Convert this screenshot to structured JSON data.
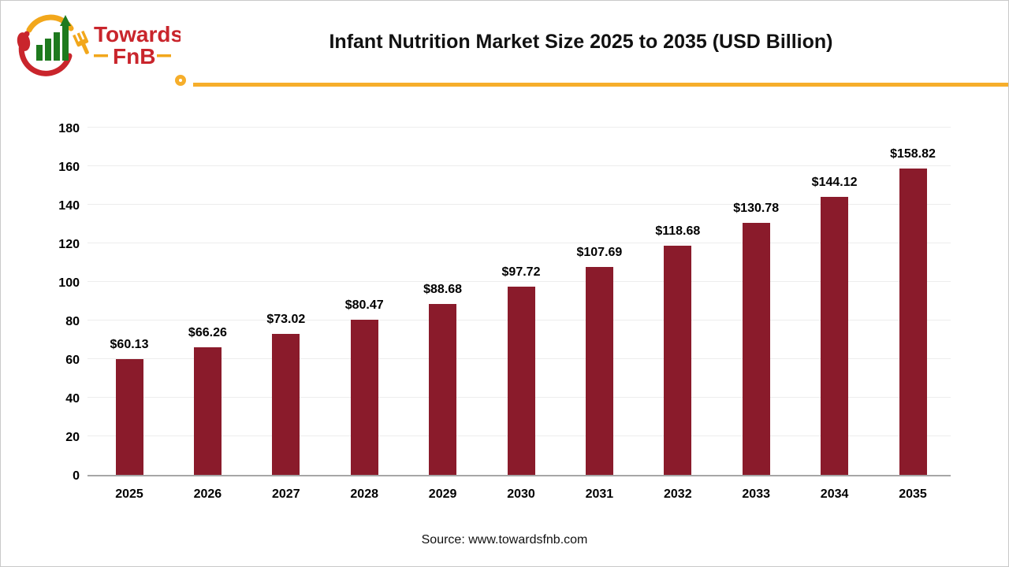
{
  "logo": {
    "name": "Towards FnB",
    "word1": "Towards",
    "word2": "FnB",
    "colors": {
      "red": "#C9252C",
      "yellow": "#F2A71B",
      "green": "#1E7A1E"
    }
  },
  "header": {
    "title": "Infant Nutrition Market Size 2025 to 2035 (USD Billion)"
  },
  "divider": {
    "color": "#F6AE2B"
  },
  "chart_data": {
    "type": "bar",
    "title": "Infant Nutrition Market Size 2025 to 2035 (USD Billion)",
    "categories": [
      "2025",
      "2026",
      "2027",
      "2028",
      "2029",
      "2030",
      "2031",
      "2032",
      "2033",
      "2034",
      "2035"
    ],
    "values": [
      60.13,
      66.26,
      73.02,
      80.47,
      88.68,
      97.72,
      107.69,
      118.68,
      130.78,
      144.12,
      158.82
    ],
    "value_labels": [
      "$60.13",
      "$66.26",
      "$73.02",
      "$80.47",
      "$88.68",
      "$97.72",
      "$107.69",
      "$118.68",
      "$130.78",
      "$144.12",
      "$158.82"
    ],
    "xlabel": "",
    "ylabel": "",
    "ylim": [
      0,
      180
    ],
    "y_ticks": [
      0,
      20,
      40,
      60,
      80,
      100,
      120,
      140,
      160,
      180
    ],
    "bar_color": "#8A1B2B",
    "gridlines": true,
    "gridline_color": "#ededed",
    "axis_line_color": "#a6a6a6",
    "legend_position": "none"
  },
  "footer": {
    "source": "Source: www.towardsfnb.com"
  }
}
